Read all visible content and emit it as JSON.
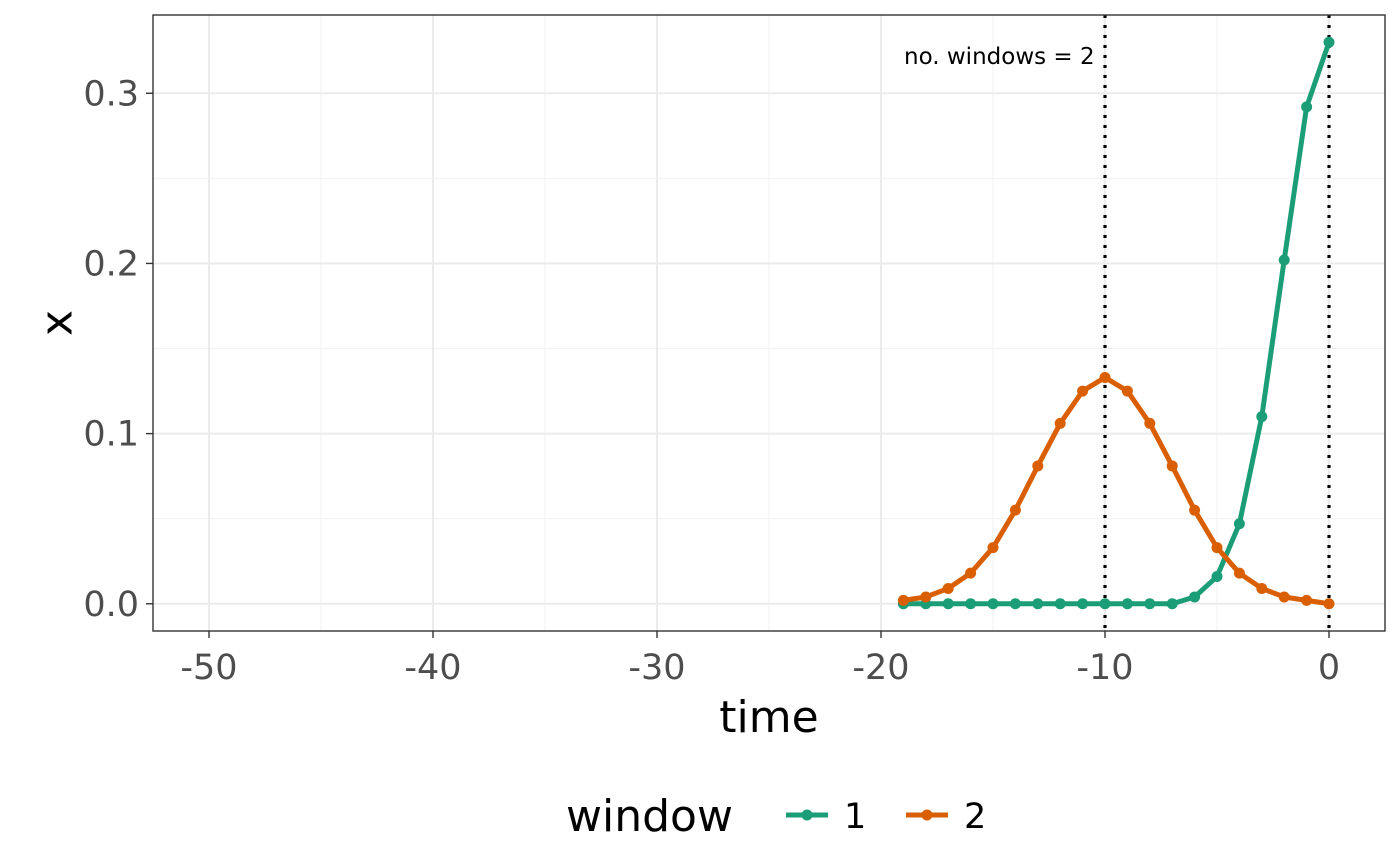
{
  "chart_data": {
    "type": "line",
    "title": "",
    "xlabel": "time",
    "ylabel": "x",
    "xlim": [
      -52.5,
      2.5
    ],
    "ylim": [
      -0.016,
      0.346
    ],
    "x_ticks": [
      -50,
      -40,
      -30,
      -20,
      -10,
      0
    ],
    "x_tick_labels": [
      "-50",
      "-40",
      "-30",
      "-20",
      "-10",
      "0"
    ],
    "y_ticks": [
      0.0,
      0.1,
      0.2,
      0.3
    ],
    "y_tick_labels": [
      "0.0",
      "0.1",
      "0.2",
      "0.3"
    ],
    "grid": true,
    "legend": {
      "title": "window",
      "position": "bottom"
    },
    "vertical_lines": [
      -10,
      0
    ],
    "annotation": {
      "text": "no. windows = 2",
      "x": -10,
      "y": 0.322
    },
    "x": [
      -19,
      -18,
      -17,
      -16,
      -15,
      -14,
      -13,
      -12,
      -11,
      -10,
      -9,
      -8,
      -7,
      -6,
      -5,
      -4,
      -3,
      -2,
      -1,
      0
    ],
    "series": [
      {
        "name": "1",
        "color": "#1b9e77",
        "values": [
          0.0,
          0.0,
          0.0,
          0.0,
          0.0,
          0.0,
          0.0,
          0.0,
          0.0,
          0.0,
          0.0,
          0.0,
          0.0,
          0.004,
          0.016,
          0.047,
          0.11,
          0.202,
          0.292,
          0.33
        ]
      },
      {
        "name": "2",
        "color": "#d95f02",
        "values": [
          0.002,
          0.004,
          0.009,
          0.018,
          0.033,
          0.055,
          0.081,
          0.106,
          0.125,
          0.133,
          0.125,
          0.106,
          0.081,
          0.055,
          0.033,
          0.018,
          0.009,
          0.004,
          0.002,
          0.0
        ]
      }
    ]
  }
}
